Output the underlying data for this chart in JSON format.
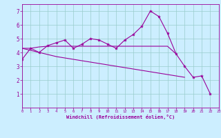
{
  "xlabel": "Windchill (Refroidissement éolien,°C)",
  "x_main": [
    0,
    1,
    2,
    3,
    4,
    5,
    6,
    7,
    8,
    9,
    10,
    11,
    12,
    13,
    14,
    15,
    16,
    17,
    18,
    19,
    20,
    21,
    22,
    23
  ],
  "y_main": [
    3.5,
    4.3,
    4.0,
    4.5,
    4.7,
    4.9,
    4.3,
    4.6,
    5.0,
    4.9,
    4.6,
    4.3,
    4.9,
    5.3,
    5.9,
    7.0,
    6.6,
    5.4,
    3.9,
    3.0,
    2.2,
    2.3,
    1.0,
    null
  ],
  "y_line1": [
    4.3,
    4.3,
    4.4,
    4.45,
    4.45,
    4.45,
    4.45,
    4.45,
    4.45,
    4.45,
    4.45,
    4.45,
    4.45,
    4.45,
    4.45,
    4.45,
    4.45,
    4.45,
    3.9,
    null,
    null,
    null,
    null,
    null
  ],
  "y_line2": [
    4.3,
    4.15,
    4.0,
    3.85,
    3.7,
    3.6,
    3.5,
    3.4,
    3.3,
    3.2,
    3.1,
    3.0,
    2.9,
    2.8,
    2.7,
    2.6,
    2.5,
    2.4,
    2.3,
    2.2,
    null,
    null,
    null,
    null
  ],
  "bg_color": "#cceeff",
  "line_color": "#990099",
  "grid_color": "#99cccc",
  "ylim": [
    0,
    7.5
  ],
  "xlim": [
    0,
    23
  ],
  "yticks": [
    1,
    2,
    3,
    4,
    5,
    6,
    7
  ],
  "xticks": [
    0,
    1,
    2,
    3,
    4,
    5,
    6,
    7,
    8,
    9,
    10,
    11,
    12,
    13,
    14,
    15,
    16,
    17,
    18,
    19,
    20,
    21,
    22,
    23
  ]
}
